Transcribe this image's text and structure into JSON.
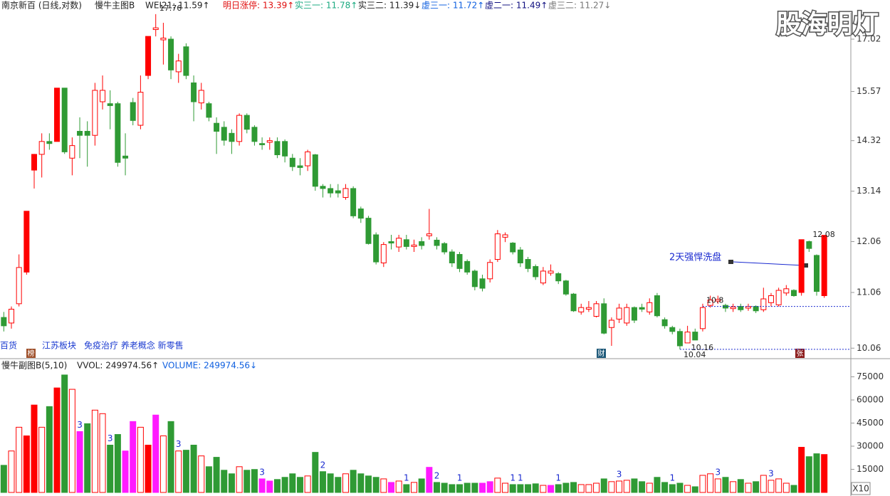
{
  "header": {
    "stock": "南京新百 (日线,对数)",
    "main_indicator": "慢牛主图B",
    "indicators": [
      "WEI21: 11.59↑",
      "明日涨停: 13.39↑",
      "实三一: 11.78↑",
      "实三二: 11.39↓",
      "虚三一: 11.72↑",
      "虚二一: 11.49↑",
      "虚三二: 11.27↓"
    ],
    "watermark": "股海明灯"
  },
  "tags": [
    "百货",
    "江苏板块",
    "免疫治疗 养老概念 新零售"
  ],
  "badges": [
    "榜",
    "财",
    "张"
  ],
  "callout": "2天强悍洗盘",
  "sub_header": {
    "name": "慢牛副图B(5,10)",
    "vvol": "VVOL: 249974.56↑",
    "volume": "VOLUME: 249974.56↓",
    "scale": "X10"
  },
  "chart_data": [
    {
      "type": "candlestick",
      "log_scale": true,
      "up_color": "#ff0000",
      "down_color": "#2f9a34",
      "open": [
        10.6,
        10.5,
        10.85,
        11.45,
        13.62,
        13.99,
        14.3,
        14.3,
        15.66,
        13.9,
        14.55,
        14.55,
        14.45,
        15.3,
        15.25,
        15.25,
        13.95,
        15.28,
        14.7,
        16.0,
        17.3,
        17.0,
        17.02,
        16.1,
        16.8,
        15.8,
        15.27,
        15.25,
        14.75,
        14.65,
        14.5,
        14.3,
        14.95,
        14.65,
        14.25,
        14.28,
        14.3,
        14.3,
        13.9,
        13.72,
        13.72,
        13.98,
        13.25,
        13.2,
        13.15,
        13.0,
        13.2,
        12.75,
        12.55,
        12.2,
        11.63,
        12.06,
        11.95,
        12.1,
        11.96,
        12.06,
        12.18,
        12.09,
        12.02,
        11.85,
        11.8,
        11.66,
        11.47,
        11.32,
        11.32,
        11.7,
        12.15,
        12.03,
        11.89,
        11.7,
        11.56,
        11.24,
        11.43,
        11.42,
        11.28,
        11.03,
        10.7,
        10.75,
        10.62,
        10.85,
        10.42,
        10.57,
        10.5,
        10.78,
        10.78,
        10.7,
        11.0,
        10.56,
        10.42,
        10.35,
        10.15,
        10.34,
        10.4,
        10.82,
        10.9,
        10.82,
        10.76,
        10.8,
        10.77,
        10.8,
        10.74,
        10.87,
        10.83,
        11.05,
        11.1,
        11.06,
        12.06,
        11.78,
        11.0
      ],
      "high": [
        10.7,
        10.8,
        11.8,
        12.7,
        14.0,
        14.5,
        14.5,
        15.66,
        15.66,
        14.4,
        14.9,
        14.8,
        15.8,
        16.0,
        15.6,
        15.3,
        14.5,
        15.4,
        16.0,
        17.1,
        17.76,
        17.5,
        17.1,
        16.6,
        16.9,
        16.0,
        15.8,
        15.3,
        14.9,
        14.8,
        14.6,
        15.0,
        15.0,
        14.7,
        14.4,
        14.4,
        14.4,
        14.35,
        14.0,
        13.9,
        14.1,
        14.0,
        13.3,
        13.3,
        13.3,
        13.3,
        13.25,
        12.8,
        12.6,
        12.25,
        12.05,
        12.2,
        12.2,
        12.2,
        12.1,
        12.15,
        12.75,
        12.15,
        12.05,
        11.9,
        11.85,
        11.7,
        11.5,
        11.4,
        11.7,
        12.3,
        12.25,
        12.05,
        11.95,
        11.75,
        11.6,
        11.55,
        11.6,
        11.45,
        11.3,
        11.05,
        10.85,
        10.9,
        10.9,
        10.95,
        10.6,
        10.85,
        10.85,
        10.8,
        10.85,
        10.95,
        11.05,
        10.6,
        10.45,
        10.4,
        10.45,
        10.4,
        10.85,
        11.0,
        11.0,
        10.85,
        10.85,
        10.85,
        10.85,
        10.82,
        11.15,
        11.05,
        11.15,
        11.2,
        11.12,
        12.1,
        12.08,
        11.8,
        12.19
      ],
      "low": [
        10.35,
        10.4,
        10.8,
        11.4,
        13.2,
        13.45,
        14.1,
        14.3,
        14.0,
        13.5,
        13.9,
        13.7,
        14.2,
        15.1,
        14.6,
        13.7,
        13.5,
        14.7,
        14.6,
        15.9,
        17.1,
        16.3,
        15.9,
        15.8,
        15.9,
        14.8,
        15.1,
        14.8,
        14.0,
        14.2,
        14.0,
        14.2,
        14.5,
        14.2,
        14.1,
        14.1,
        13.9,
        13.8,
        13.6,
        13.5,
        13.6,
        13.15,
        13.0,
        13.0,
        13.0,
        12.95,
        12.55,
        12.45,
        12.0,
        11.6,
        11.55,
        11.9,
        11.85,
        11.9,
        11.85,
        11.9,
        12.1,
        11.9,
        11.8,
        11.55,
        11.45,
        11.4,
        11.1,
        11.08,
        11.25,
        11.65,
        12.05,
        11.8,
        11.55,
        11.45,
        11.3,
        11.2,
        11.38,
        11.22,
        11.0,
        10.7,
        10.65,
        10.7,
        10.6,
        10.3,
        10.1,
        10.5,
        10.45,
        10.5,
        10.7,
        10.65,
        10.6,
        10.4,
        10.3,
        10.04,
        10.16,
        10.2,
        10.35,
        10.78,
        10.85,
        10.7,
        10.7,
        10.7,
        10.72,
        10.68,
        10.7,
        10.8,
        10.8,
        11.0,
        10.98,
        11.0,
        11.85,
        11.0,
        10.96
      ],
      "close": [
        10.45,
        10.75,
        11.54,
        12.7,
        13.99,
        14.3,
        14.25,
        15.66,
        14.05,
        14.2,
        14.45,
        14.45,
        15.6,
        15.6,
        15.2,
        13.8,
        13.9,
        14.82,
        15.55,
        17.1,
        17.35,
        17.05,
        16.15,
        16.4,
        16.0,
        15.3,
        15.6,
        14.9,
        14.55,
        14.33,
        14.3,
        14.95,
        14.6,
        14.3,
        14.22,
        14.32,
        13.98,
        13.95,
        13.7,
        13.68,
        14.05,
        13.25,
        13.2,
        13.1,
        13.1,
        13.2,
        12.6,
        12.55,
        12.02,
        11.65,
        12.0,
        12.03,
        12.13,
        11.96,
        11.99,
        11.98,
        12.22,
        11.98,
        11.85,
        11.63,
        11.52,
        11.45,
        11.17,
        11.14,
        11.64,
        12.22,
        12.2,
        11.85,
        11.63,
        11.52,
        11.36,
        11.47,
        11.47,
        11.28,
        11.03,
        10.72,
        10.78,
        10.78,
        10.85,
        10.32,
        10.55,
        10.77,
        10.78,
        10.55,
        10.75,
        10.87,
        10.63,
        10.45,
        10.35,
        10.1,
        10.34,
        10.2,
        10.78,
        10.92,
        10.93,
        10.77,
        10.79,
        10.74,
        10.8,
        10.72,
        10.94,
        11.0,
        11.1,
        11.13,
        11.0,
        12.1,
        11.92,
        11.08,
        12.19
      ],
      "ylim": [
        9.93,
        17.8
      ],
      "yticks": [
        10.06,
        11.06,
        12.06,
        13.14,
        14.32,
        15.57,
        17.02
      ],
      "annotations": [
        {
          "index": 20,
          "value": 17.76
        },
        {
          "index": 89,
          "value": 10.04,
          "line": true
        },
        {
          "index": 90,
          "value": 10.16
        },
        {
          "index": 92,
          "value": 10.8,
          "line": true
        },
        {
          "index": 106,
          "value": 12.08
        }
      ]
    },
    {
      "type": "volume",
      "values": [
        17600,
        26900,
        42300,
        36700,
        56700,
        42300,
        55700,
        67800,
        76200,
        66900,
        39500,
        44600,
        53400,
        51100,
        30700,
        37600,
        26900,
        46000,
        42300,
        30700,
        50200,
        36700,
        46000,
        26900,
        27400,
        30700,
        23700,
        16700,
        22800,
        14400,
        12100,
        16700,
        14400,
        14900,
        8800,
        7400,
        8400,
        9800,
        12100,
        9800,
        10700,
        26000,
        13500,
        12100,
        9800,
        12100,
        14400,
        12100,
        10700,
        9800,
        8800,
        6500,
        7400,
        5100,
        6500,
        8800,
        16300,
        6500,
        6000,
        5100,
        5100,
        6000,
        6000,
        6000,
        7000,
        9300,
        6000,
        5100,
        5100,
        5100,
        5600,
        4600,
        4600,
        5100,
        6000,
        6500,
        5100,
        5100,
        6000,
        8800,
        7000,
        7400,
        7900,
        8800,
        7000,
        6000,
        9800,
        6500,
        5100,
        6000,
        4600,
        3700,
        11100,
        12100,
        8800,
        9800,
        7000,
        8400,
        6000,
        7000,
        11100,
        7900,
        8800,
        6000,
        4600,
        29300,
        23200,
        25100,
        24600
      ],
      "ylim": [
        0,
        79400
      ],
      "yticks": [
        15000,
        30000,
        45000,
        60000,
        75000
      ],
      "highlight": [
        10,
        16,
        17,
        20,
        34,
        35,
        51,
        56,
        63,
        64,
        72
      ],
      "highlight_color": "#ff1aff",
      "annotations": [
        {
          "index": 10,
          "text": "3"
        },
        {
          "index": 14,
          "text": "3"
        },
        {
          "index": 23,
          "text": "3"
        },
        {
          "index": 34,
          "text": "3"
        },
        {
          "index": 42,
          "text": "2"
        },
        {
          "index": 53,
          "text": "1"
        },
        {
          "index": 57,
          "text": "2"
        },
        {
          "index": 60,
          "text": "1"
        },
        {
          "index": 67,
          "text": "1"
        },
        {
          "index": 68,
          "text": "1"
        },
        {
          "index": 73,
          "text": "1"
        },
        {
          "index": 81,
          "text": "3"
        },
        {
          "index": 88,
          "text": "1"
        },
        {
          "index": 94,
          "text": "3"
        },
        {
          "index": 101,
          "text": "3"
        }
      ]
    }
  ]
}
